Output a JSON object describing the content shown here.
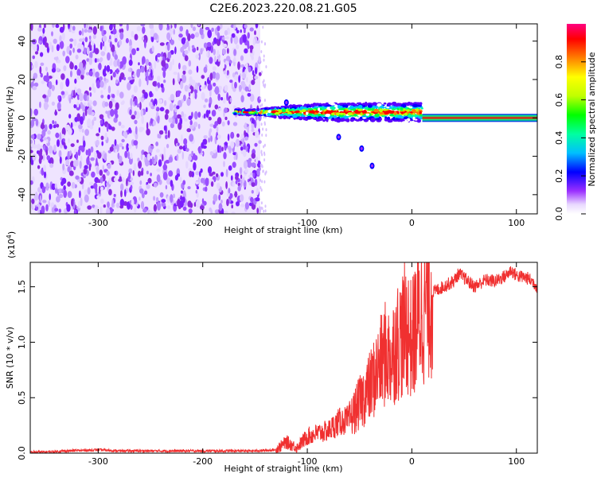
{
  "title": "C2E6.2023.220.08.21.G05",
  "colors": {
    "trace": "#f03030",
    "axis": "#000000"
  },
  "chart_data": [
    {
      "type": "heatmap",
      "xlabel": "Height of straight line (km)",
      "ylabel": "Frequency (Hz)",
      "xlim": [
        -365,
        120
      ],
      "ylim": [
        -50,
        49
      ],
      "xticks": [
        -300,
        -200,
        -100,
        0,
        100
      ],
      "xtick_labels": [
        "-300",
        "-200",
        "-100",
        "0",
        "100"
      ],
      "yticks": [
        -40,
        -20,
        0,
        20,
        40
      ],
      "ytick_labels": [
        "-40",
        "-20",
        "0",
        "20",
        "40"
      ],
      "colorbar": {
        "label": "Normalized spectral amplitude",
        "range": [
          0,
          1
        ],
        "ticks": [
          0.0,
          0.2,
          0.4,
          0.6,
          0.8
        ],
        "tick_labels": [
          "0.0",
          "0.2",
          "0.4",
          "0.6",
          "0.8"
        ]
      },
      "regions": [
        {
          "name": "noise",
          "x": [
            -365,
            -145
          ],
          "y": [
            -50,
            49
          ],
          "amplitude": 0.15
        },
        {
          "name": "signal-onset",
          "x": [
            -170,
            -140
          ],
          "center_y": 3,
          "amplitude": 0.45
        },
        {
          "name": "signal",
          "x": [
            -140,
            10
          ],
          "center_y": 3,
          "amplitude": 0.5
        },
        {
          "name": "carrier",
          "x": [
            10,
            120
          ],
          "center_y": 0,
          "amplitude": 0.9
        }
      ],
      "blobs": [
        {
          "x": -70,
          "y": -10
        },
        {
          "x": -48,
          "y": -16
        },
        {
          "x": -38,
          "y": -25
        },
        {
          "x": -120,
          "y": 8
        }
      ]
    },
    {
      "type": "line",
      "xlabel": "Height of straight line (km)",
      "ylabel": "SNR (10 * v/v)",
      "scale_label": "(x10",
      "scale_exp": "4",
      "scale_close": ")",
      "xlim": [
        -365,
        120
      ],
      "ylim": [
        0,
        1.72
      ],
      "xticks": [
        -300,
        -200,
        -100,
        0,
        100
      ],
      "xtick_labels": [
        "-300",
        "-200",
        "-100",
        "0",
        "100"
      ],
      "yticks": [
        0.0,
        0.5,
        1.0,
        1.5
      ],
      "ytick_labels": [
        "0.0",
        "0.5",
        "1.0",
        "1.5"
      ],
      "series": [
        {
          "x": [
            -365,
            -350,
            -330,
            -300,
            -280,
            -250,
            -200,
            -150,
            -130,
            -120,
            -110,
            -100,
            -90,
            -80,
            -70,
            -60,
            -50,
            -40,
            -30,
            -25,
            -20,
            -15,
            -10,
            -5,
            0,
            5,
            10,
            20,
            30,
            40,
            45,
            50,
            60,
            70,
            80,
            90,
            95,
            100,
            110,
            115,
            120
          ],
          "values": [
            0.01,
            0.01,
            0.02,
            0.03,
            0.02,
            0.02,
            0.02,
            0.02,
            0.03,
            0.1,
            0.05,
            0.15,
            0.18,
            0.2,
            0.28,
            0.3,
            0.45,
            0.6,
            0.8,
            0.9,
            0.85,
            1.0,
            1.05,
            1.15,
            1.0,
            1.2,
            1.3,
            1.45,
            1.5,
            1.55,
            1.62,
            1.58,
            1.5,
            1.56,
            1.55,
            1.6,
            1.65,
            1.6,
            1.58,
            1.55,
            1.5
          ]
        }
      ]
    }
  ]
}
